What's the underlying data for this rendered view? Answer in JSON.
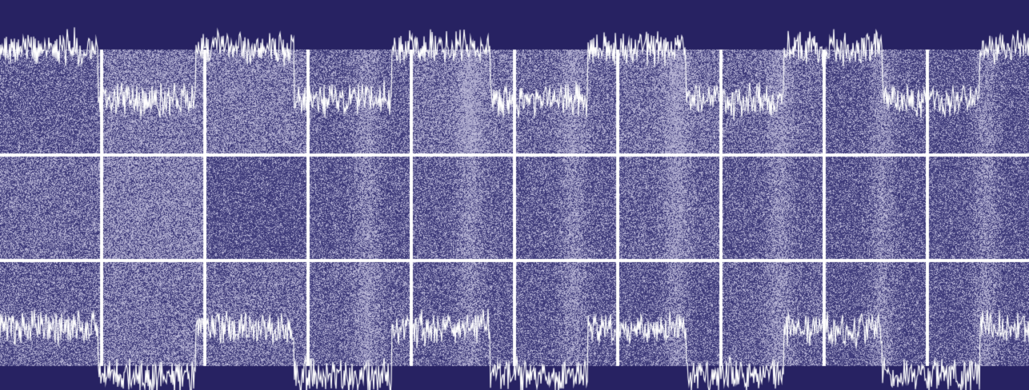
{
  "image": {
    "description_free": true,
    "grid": {
      "columns": 10,
      "rows": 3
    },
    "colors": {
      "background": "#272262",
      "noise_dark": "#2d2a6e",
      "noise_light": "#c9c6e2",
      "grid_line": "#ffffff",
      "signal_trace": "#ffffff"
    },
    "signal_traces": [
      {
        "name": "upper-trace",
        "levels": [
          0.8,
          0.2,
          0.8,
          0.2,
          0.8,
          0.2,
          0.8,
          0.2,
          0.8,
          0.2,
          0.8
        ],
        "transitions": 10
      },
      {
        "name": "lower-trace",
        "levels": [
          0.15,
          0.75,
          0.15,
          0.75,
          0.15,
          0.75,
          0.15,
          0.75,
          0.15,
          0.75,
          0.15
        ],
        "transitions": 10
      }
    ],
    "tile_brightness": [
      [
        0.35,
        0.55,
        0.55,
        0.5,
        0.75,
        0.6,
        0.7,
        0.6,
        0.45,
        0.4
      ],
      [
        0.45,
        0.6,
        0.25,
        0.45,
        0.5,
        0.45,
        0.55,
        0.45,
        0.4,
        0.4
      ],
      [
        0.4,
        0.5,
        0.45,
        0.55,
        0.45,
        0.45,
        0.4,
        0.5,
        0.4,
        0.4
      ]
    ]
  }
}
